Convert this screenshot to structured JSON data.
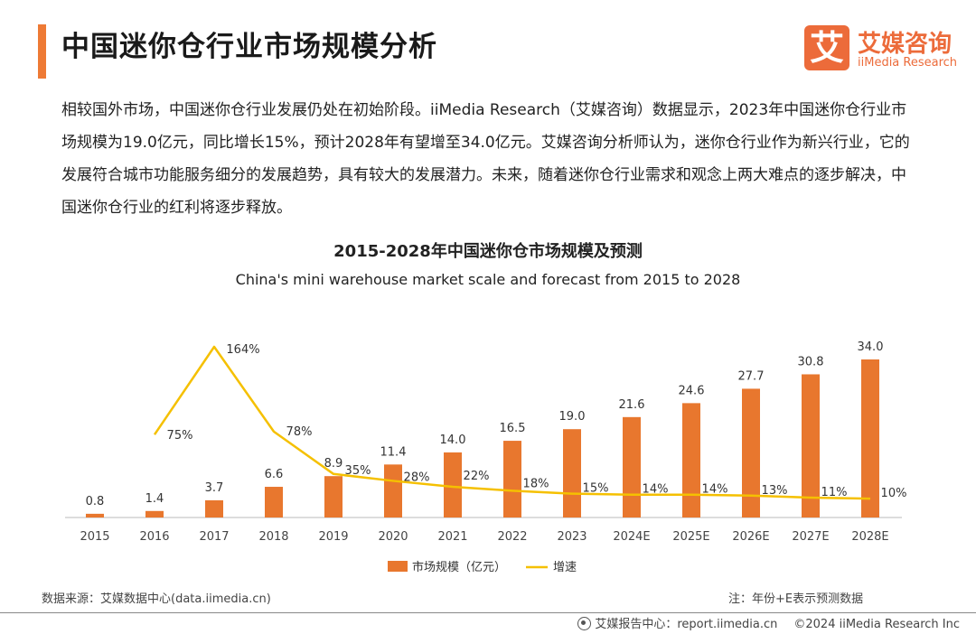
{
  "header": {
    "title": "中国迷你仓行业市场规模分析",
    "logo": {
      "mark": "艾",
      "name_cn": "艾媒咨询",
      "name_en": "iiMedia Research"
    }
  },
  "intro": {
    "text": "相较国外市场，中国迷你仓行业发展仍处在初始阶段。iiMedia Research（艾媒咨询）数据显示，2023年中国迷你仓行业市场规模为19.0亿元，同比增长15%，预计2028年有望增至34.0亿元。艾媒咨询分析师认为，迷你仓行业作为新兴行业，它的发展符合城市功能服务细分的发展趋势，具有较大的发展潜力。未来，随着迷你仓行业需求和观念上两大难点的逐步解决，中国迷你仓行业的红利将逐步释放。"
  },
  "chart_data": {
    "type": "bar",
    "title": "2015-2028年中国迷你仓市场规模及预测",
    "subtitle": "China's mini warehouse market scale and forecast from 2015 to 2028",
    "categories": [
      "2015",
      "2016",
      "2017",
      "2018",
      "2019",
      "2020",
      "2021",
      "2022",
      "2023",
      "2024E",
      "2025E",
      "2026E",
      "2027E",
      "2028E"
    ],
    "series": [
      {
        "name": "市场规模（亿元）",
        "type": "bar",
        "color": "#e8772e",
        "values": [
          0.8,
          1.4,
          3.7,
          6.6,
          8.9,
          11.4,
          14.0,
          16.5,
          19.0,
          21.6,
          24.6,
          27.7,
          30.8,
          34.0
        ],
        "labels": [
          "0.8",
          "1.4",
          "3.7",
          "6.6",
          "8.9",
          "11.4",
          "14.0",
          "16.5",
          "19.0",
          "21.6",
          "24.6",
          "27.7",
          "30.8",
          "34.0"
        ]
      },
      {
        "name": "增速",
        "type": "line",
        "color": "#f5c000",
        "values": [
          null,
          75,
          164,
          78,
          35,
          28,
          22,
          18,
          15,
          14,
          14,
          13,
          11,
          10
        ],
        "labels": [
          "",
          "75%",
          "164%",
          "78%",
          "35%",
          "28%",
          "22%",
          "18%",
          "15%",
          "14%",
          "14%",
          "13%",
          "11%",
          "10%"
        ]
      }
    ],
    "bar_ylim": [
      0,
      40
    ],
    "line_ylim": [
      0,
      180
    ],
    "legend": "bottom-center"
  },
  "footer": {
    "source": "数据来源：艾媒数据中心(data.iimedia.cn)",
    "note": "注：年份+E表示预测数据",
    "report_center": "艾媒报告中心：report.iimedia.cn",
    "copyright": "©2024  iiMedia Research  Inc"
  }
}
